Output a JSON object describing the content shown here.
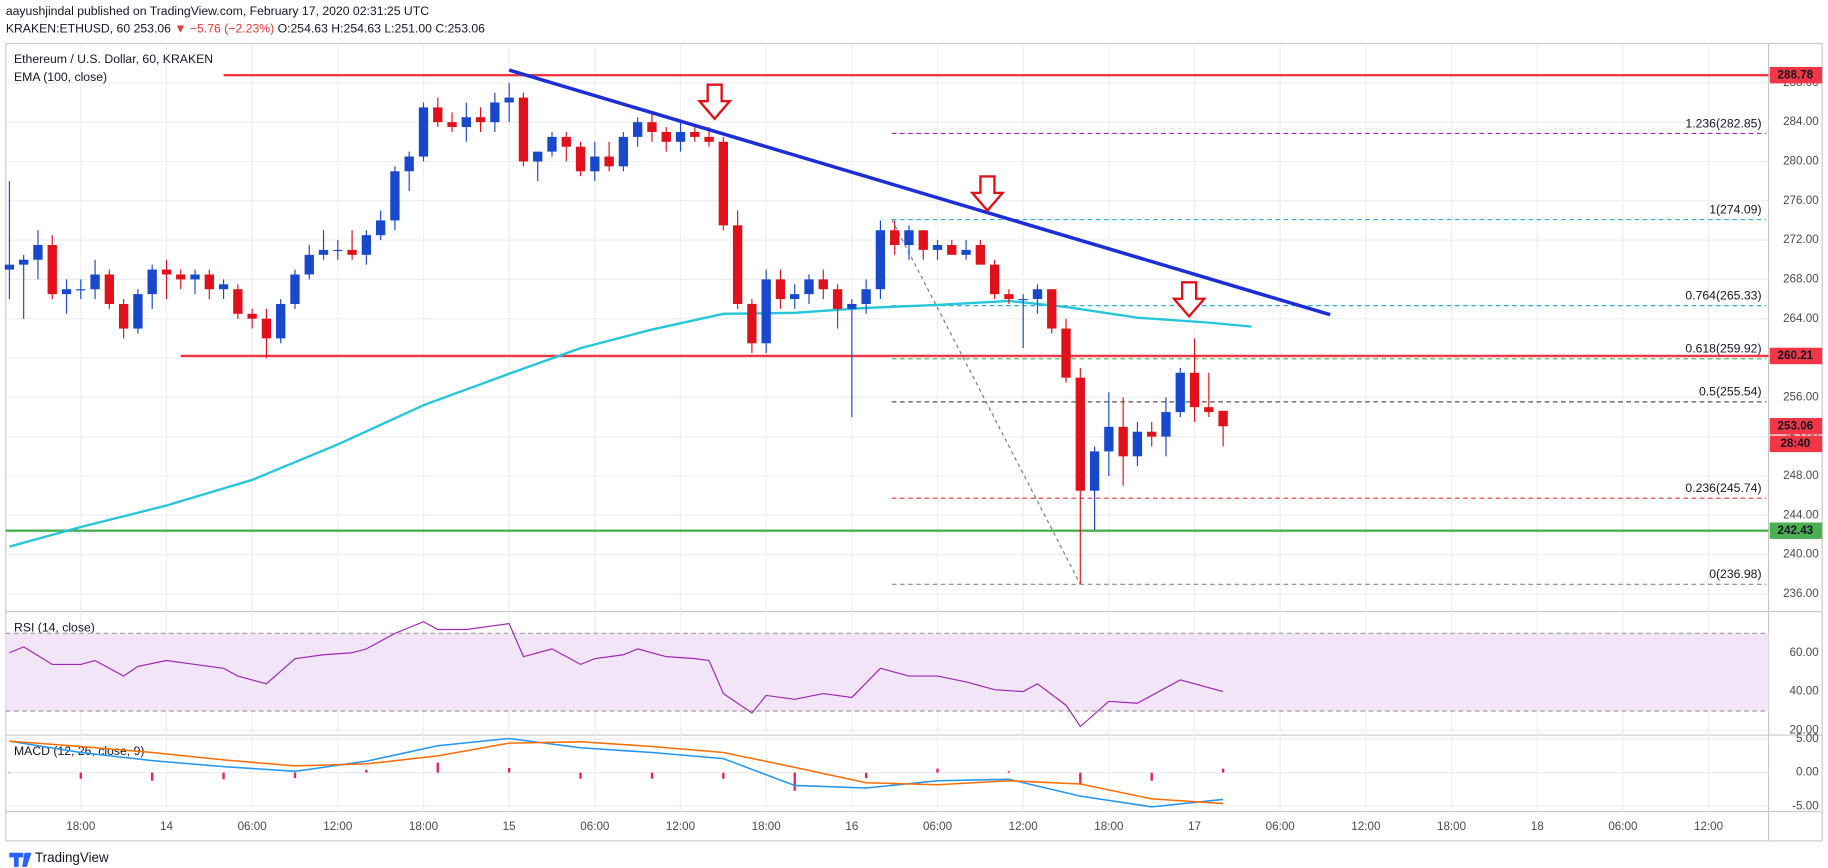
{
  "header": {
    "publisher": "aayushjindal published on TradingView.com, February 17, 2020 02:31:25 UTC",
    "symbol": "KRAKEN:ETHUSD, 60",
    "last": "253.06",
    "change": "▼ −5.76 (−2.23%)",
    "open": "O:254.63",
    "high": "H:254.63",
    "low": "L:251.00",
    "close": "C:253.06"
  },
  "chart_data": [
    {
      "type": "candlestick",
      "title": "Ethereum / U.S. Dollar, 60, KRAKEN",
      "open": [
        269,
        269.5,
        270,
        271.5,
        266.5,
        267,
        267,
        268.5,
        265.5,
        263,
        266.5,
        269,
        268.5,
        268,
        268.5,
        267,
        267,
        264.5,
        264,
        262,
        265.5,
        268.5,
        270.5,
        271,
        271,
        270.5,
        272.5,
        274,
        279,
        280.5,
        285.5,
        284,
        283.5,
        284.5,
        284,
        286,
        286.5,
        280,
        281,
        282.5,
        281.5,
        279,
        280.5,
        279.5,
        282.5,
        284,
        283,
        282,
        283,
        282.5,
        282,
        273.5,
        265.5,
        261.5,
        268,
        266,
        266.5,
        268,
        267,
        265,
        265.5,
        267,
        273,
        271.5,
        273,
        271,
        271.5,
        270.5,
        271.5,
        269.5,
        266.5,
        266,
        266,
        267,
        263,
        258,
        246.5,
        250.5,
        253,
        250,
        252.5,
        252,
        254.5,
        258.5,
        255,
        254.63
      ],
      "high": [
        278,
        270.5,
        273,
        272.5,
        268,
        268,
        270,
        269,
        266,
        267,
        269.5,
        270,
        269,
        269,
        269,
        268,
        267.5,
        265,
        265,
        266,
        269,
        271.5,
        273,
        272,
        273,
        273,
        275,
        279.5,
        281,
        286,
        286.5,
        285,
        286,
        285.5,
        287,
        288,
        287,
        281,
        283,
        283,
        282,
        282,
        282,
        283,
        284.5,
        285,
        283.5,
        284,
        283.5,
        283.5,
        282.5,
        275,
        266,
        269,
        269,
        267.5,
        268.5,
        269,
        267.5,
        266,
        268,
        274,
        274,
        273.5,
        273,
        272,
        272,
        272,
        272,
        270,
        267,
        266.5,
        267.5,
        267,
        264,
        259,
        251,
        256.5,
        256,
        253.5,
        253.5,
        256,
        259,
        262,
        258.5,
        254.63
      ],
      "low": [
        266,
        264,
        268,
        266,
        264.5,
        266,
        266,
        265,
        262,
        262.5,
        265,
        266,
        267,
        266.5,
        266,
        266,
        264,
        263,
        260,
        261.5,
        265,
        268,
        270,
        270,
        270,
        269.5,
        272,
        273,
        277,
        280,
        283.5,
        283,
        282,
        283,
        283,
        284,
        279.5,
        278,
        280.5,
        280,
        278.5,
        278,
        279,
        279,
        281.5,
        282,
        281,
        281,
        282,
        281.5,
        273,
        265,
        260.5,
        260.5,
        265,
        265,
        265.5,
        266,
        263,
        254,
        264.5,
        266,
        270.5,
        270,
        270,
        270,
        270.5,
        270,
        269.5,
        266,
        265.5,
        261,
        264.5,
        262.5,
        257.5,
        237,
        242.5,
        248,
        247,
        249,
        251,
        250,
        254,
        253.5,
        254,
        251
      ],
      "close": [
        269.5,
        270,
        271.5,
        266.5,
        267,
        267,
        268.5,
        265.5,
        263,
        266.5,
        269,
        268.5,
        268,
        268.5,
        267,
        267.5,
        264.5,
        264,
        262,
        265.5,
        268.5,
        270.5,
        271,
        271,
        270.5,
        272.5,
        274,
        279,
        280.5,
        285.5,
        284,
        283.5,
        284.5,
        284,
        286,
        286.5,
        280,
        281,
        282.5,
        281.5,
        279,
        280.5,
        279.5,
        282.5,
        284,
        283,
        282,
        283,
        282.5,
        282,
        273.5,
        265.5,
        261.5,
        268,
        266,
        266.5,
        268,
        267,
        265,
        265.5,
        267,
        273,
        271.5,
        273,
        271,
        271.5,
        270.5,
        271,
        269.5,
        266.5,
        266,
        266,
        267,
        263,
        258,
        246.5,
        250.5,
        253,
        250,
        252.5,
        252,
        254.5,
        258.5,
        255,
        254.5,
        253.06
      ],
      "up_color": "#1848cc",
      "down_color": "#e0111b",
      "xlim": [
        -0.25,
        123.2
      ],
      "ylim": [
        234.2,
        292
      ],
      "xticks": [
        {
          "value": 5,
          "label": "18:00"
        },
        {
          "value": 11,
          "label": "14"
        },
        {
          "value": 17,
          "label": "06:00"
        },
        {
          "value": 23,
          "label": "12:00"
        },
        {
          "value": 29,
          "label": "18:00"
        },
        {
          "value": 35,
          "label": "15"
        },
        {
          "value": 41,
          "label": "06:00"
        },
        {
          "value": 47,
          "label": "12:00"
        },
        {
          "value": 53,
          "label": "18:00"
        },
        {
          "value": 59,
          "label": "16"
        },
        {
          "value": 65,
          "label": "06:00"
        },
        {
          "value": 71,
          "label": "12:00"
        },
        {
          "value": 77,
          "label": "18:00"
        },
        {
          "value": 83,
          "label": "17"
        },
        {
          "value": 89,
          "label": "06:00"
        },
        {
          "value": 95,
          "label": "12:00"
        },
        {
          "value": 101,
          "label": "18:00"
        },
        {
          "value": 107,
          "label": "18"
        },
        {
          "value": 113,
          "label": "06:00"
        },
        {
          "value": 119,
          "label": "12:00"
        }
      ],
      "yticks": [
        {
          "value": 236,
          "label": "236.00"
        },
        {
          "value": 240,
          "label": "240.00"
        },
        {
          "value": 244,
          "label": "244.00"
        },
        {
          "value": 248,
          "label": "248.00"
        },
        {
          "value": 252,
          "label": "252.00"
        },
        {
          "value": 256,
          "label": "256.00"
        },
        {
          "value": 260,
          "label": "260.00"
        },
        {
          "value": 264,
          "label": "264.00"
        },
        {
          "value": 268,
          "label": "268.00"
        },
        {
          "value": 272,
          "label": "272.00"
        },
        {
          "value": 276,
          "label": "276.00"
        },
        {
          "value": 280,
          "label": "280.00"
        },
        {
          "value": 284,
          "label": "284.00"
        },
        {
          "value": 288,
          "label": "288.00"
        }
      ],
      "grid": true,
      "ema": {
        "name": "EMA (100, close)",
        "color": "#26c6da",
        "x": [
          0,
          5,
          11,
          17,
          23,
          29,
          35,
          40,
          45,
          50,
          55,
          60,
          65,
          70,
          74,
          79,
          84,
          87
        ],
        "values": [
          240.8,
          242.8,
          245,
          247.6,
          251.2,
          255.2,
          258.4,
          261,
          262.9,
          264.5,
          264.6,
          265.1,
          265.4,
          265.8,
          265.2,
          264.1,
          263.6,
          263.2
        ]
      },
      "levels": [
        {
          "value": 288.78,
          "label": "288.78",
          "color": "#f23645",
          "start": 15
        },
        {
          "value": 260.21,
          "label": "260.21",
          "color": "#f23645",
          "start": 12
        },
        {
          "value": 242.43,
          "label": "242.43",
          "color": "#4caf50"
        }
      ],
      "trendline": {
        "color": "#1c2fd6",
        "x": [
          35,
          92.5
        ],
        "y": [
          289.3,
          264.4
        ]
      },
      "fib": {
        "x": [
          61.8,
          75
        ],
        "y": [
          274.09,
          236.98
        ],
        "levels": [
          {
            "value": 282.85,
            "label": "1.236(282.85)",
            "color": "#9c27b0"
          },
          {
            "value": 274.09,
            "label": "1(274.09)",
            "color": "#2ab0d6"
          },
          {
            "value": 265.33,
            "label": "0.764(265.33)",
            "color": "#2ab0d6"
          },
          {
            "value": 259.92,
            "label": "0.618(259.92)",
            "color": "#4caf50"
          },
          {
            "value": 255.54,
            "label": "0.5(255.54)",
            "color": "#555555"
          },
          {
            "value": 245.74,
            "label": "0.236(245.74)",
            "color": "#e53935"
          },
          {
            "value": 236.98,
            "label": "0(236.98)",
            "color": "#888888"
          }
        ]
      },
      "last_price": {
        "value": 253.06,
        "label": "253.06",
        "color": "#f23645"
      },
      "countdown": "28:40"
    },
    {
      "type": "line",
      "title": "RSI (14, close)",
      "color": "#9c27b0",
      "band": [
        30,
        70
      ],
      "band_color": "#f3e5f8",
      "x": [
        0,
        1,
        3,
        5,
        6,
        8,
        9,
        11,
        13,
        15,
        16,
        18,
        20,
        22,
        24,
        25,
        27,
        29,
        30,
        32,
        34,
        35,
        36,
        38,
        40,
        41,
        43,
        44,
        46,
        48,
        49,
        50,
        52,
        53,
        55,
        57,
        59,
        61,
        63,
        65,
        67,
        69,
        71,
        72,
        74,
        75,
        77,
        79,
        82,
        84,
        85
      ],
      "values": [
        60,
        63,
        54,
        54,
        56,
        48,
        53,
        56,
        54,
        52,
        48,
        44,
        57,
        59,
        60,
        62,
        70,
        76,
        72,
        72,
        74,
        75,
        58,
        62,
        54,
        57,
        59,
        62,
        58,
        57,
        56,
        39,
        29,
        38,
        36,
        39,
        37,
        52,
        48,
        48,
        45,
        41,
        40,
        44,
        33,
        22,
        35,
        34,
        46,
        42,
        40
      ],
      "ylim": [
        17.6,
        81.2
      ],
      "yticks": [
        {
          "value": 20,
          "label": "20.00"
        },
        {
          "value": 40,
          "label": "40.00"
        },
        {
          "value": 60,
          "label": "60.00"
        }
      ]
    },
    {
      "type": "macd",
      "title": "MACD (12, 26, close, 9)",
      "x": [
        0,
        5,
        10,
        15,
        20,
        25,
        30,
        35,
        40,
        45,
        50,
        55,
        60,
        65,
        70,
        75,
        80,
        85
      ],
      "series": [
        {
          "color": "#2196f3",
          "values": [
            4.7,
            3.0,
            1.8,
            0.9,
            0.2,
            1.7,
            4.0,
            5.1,
            3.7,
            3.0,
            2.1,
            -1.9,
            -2.3,
            -1.2,
            -1.0,
            -3.5,
            -5.1,
            -4.0
          ]
        },
        {
          "color": "#ff6d00",
          "values": [
            4.7,
            3.9,
            3.0,
            1.9,
            1.0,
            1.3,
            2.5,
            4.4,
            4.6,
            3.9,
            3.0,
            0.8,
            -1.5,
            -1.8,
            -1.2,
            -1.7,
            -3.9,
            -4.6
          ]
        }
      ],
      "histogram": {
        "color": "#e91e63",
        "values": [
          0,
          -0.9,
          -1.2,
          -1,
          -0.8,
          0.4,
          1.5,
          0.7,
          -0.9,
          -0.9,
          -0.9,
          -2.7,
          -0.8,
          0.6,
          0.2,
          -1.8,
          -1.2,
          0.6
        ]
      },
      "ylim": [
        -5.8,
        5.6
      ],
      "yticks": [
        {
          "value": -5,
          "label": "-5.00"
        },
        {
          "value": 0,
          "label": "0.00"
        },
        {
          "value": 5,
          "label": "5.00"
        }
      ]
    }
  ],
  "footer": {
    "brand": "TradingView"
  }
}
